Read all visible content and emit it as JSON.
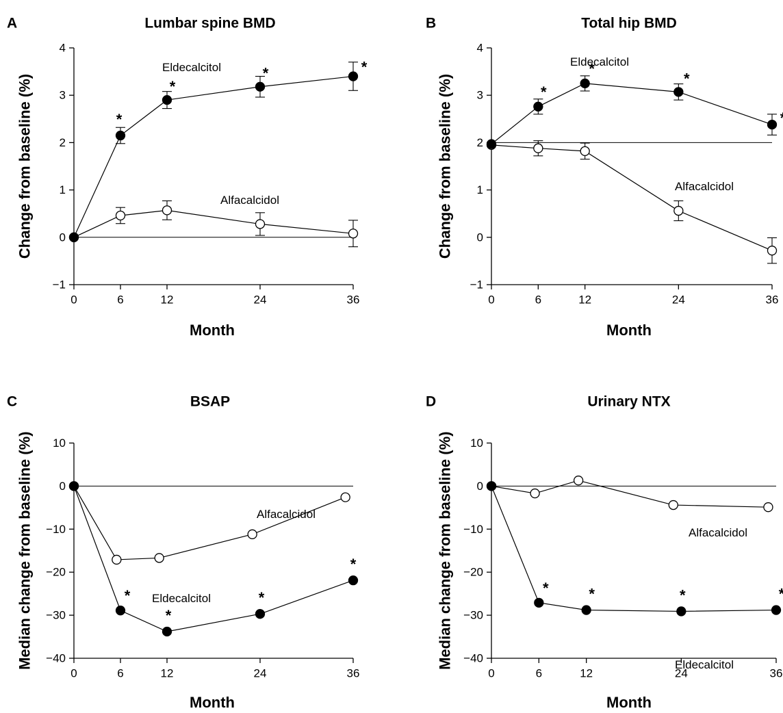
{
  "chart_data": [
    {
      "panel": "A",
      "type": "line",
      "title": "Lumbar spine BMD",
      "xlabel": "Month",
      "ylabel": "Change from baseline (%)",
      "x": [
        0,
        6,
        12,
        24,
        36
      ],
      "xticks": [
        "0",
        "6",
        "12",
        "24",
        "36"
      ],
      "xlim": [
        0,
        36
      ],
      "ylim": [
        -1,
        4
      ],
      "yticks": [
        -1,
        0,
        1,
        2,
        3,
        4
      ],
      "yticklabels": [
        "−1",
        "0",
        "1",
        "2",
        "3",
        "4"
      ],
      "reference_line": 0,
      "series": [
        {
          "name": "Eldecalcitol",
          "marker": "filled",
          "values": [
            0,
            2.15,
            2.9,
            3.18,
            3.4
          ],
          "errors": [
            0,
            0.17,
            0.18,
            0.22,
            0.3
          ],
          "significant": [
            false,
            true,
            true,
            true,
            true
          ]
        },
        {
          "name": "Alfacalcidol",
          "marker": "open",
          "values": [
            0,
            0.46,
            0.57,
            0.28,
            0.08
          ],
          "errors": [
            0,
            0.17,
            0.2,
            0.24,
            0.28
          ],
          "significant": [
            false,
            false,
            false,
            false,
            false
          ]
        }
      ],
      "significance_mark": "*"
    },
    {
      "panel": "B",
      "type": "line",
      "title": "Total hip BMD",
      "xlabel": "Month",
      "ylabel": "Change from baseline (%)",
      "x": [
        0,
        6,
        12,
        24,
        36
      ],
      "xticks": [
        "0",
        "6",
        "12",
        "24",
        "36"
      ],
      "xlim": [
        0,
        36
      ],
      "ylim": [
        -1,
        4
      ],
      "yticks": [
        -1,
        0,
        1,
        2,
        3,
        4
      ],
      "yticklabels": [
        "−1",
        "0",
        "1",
        "2",
        "3",
        "4"
      ],
      "reference_line": 2,
      "series": [
        {
          "name": "Eldecalcitol",
          "marker": "filled",
          "values": [
            1.97,
            2.76,
            3.25,
            3.07,
            2.38
          ],
          "errors": [
            0,
            0.16,
            0.16,
            0.17,
            0.22
          ],
          "significant": [
            false,
            true,
            true,
            true,
            true
          ]
        },
        {
          "name": "Alfacalcidol",
          "marker": "open",
          "values": [
            1.95,
            1.88,
            1.82,
            0.56,
            -0.28
          ],
          "errors": [
            0,
            0.16,
            0.17,
            0.21,
            0.27
          ],
          "significant": [
            false,
            false,
            false,
            false,
            false
          ]
        }
      ],
      "significance_mark": "*"
    },
    {
      "panel": "C",
      "type": "line",
      "title": "BSAP",
      "xlabel": "Month",
      "ylabel": "Median change from baseline (%)",
      "xticks": [
        "0",
        "6",
        "12",
        "24",
        "36"
      ],
      "xtick_values": [
        0,
        6,
        12,
        24,
        36
      ],
      "xlim": [
        0,
        36
      ],
      "ylim": [
        -40,
        15
      ],
      "yticks": [
        -40,
        -30,
        -20,
        -10,
        0,
        10
      ],
      "yticklabels": [
        "−40",
        "−30",
        "−20",
        "−10",
        "0",
        "10"
      ],
      "reference_line": 0,
      "series": [
        {
          "name": "Eldecalcitol",
          "marker": "filled",
          "x": [
            0,
            6,
            12,
            24,
            36
          ],
          "values": [
            0,
            -28.9,
            -33.8,
            -29.7,
            -21.9
          ],
          "significant": [
            false,
            true,
            true,
            true,
            true
          ]
        },
        {
          "name": "Alfacalcidol",
          "marker": "open",
          "x": [
            0,
            5.5,
            11,
            23,
            35
          ],
          "values": [
            0,
            -17.1,
            -16.7,
            -11.2,
            -2.6
          ],
          "significant": [
            false,
            false,
            false,
            false,
            false
          ]
        }
      ],
      "significance_mark": "*"
    },
    {
      "panel": "D",
      "type": "line",
      "title": "Urinary NTX",
      "xlabel": "Month",
      "ylabel": "Median change from baseline (%)",
      "xticks": [
        "0",
        "6",
        "12",
        "24",
        "36"
      ],
      "xtick_values": [
        0,
        6,
        12,
        24,
        36
      ],
      "xlim": [
        0,
        36
      ],
      "ylim": [
        -40,
        15
      ],
      "yticks": [
        -40,
        -30,
        -20,
        -10,
        0,
        10
      ],
      "yticklabels": [
        "−40",
        "−30",
        "−20",
        "−10",
        "0",
        "10"
      ],
      "reference_line": 0,
      "series": [
        {
          "name": "Eldecalcitol",
          "marker": "filled",
          "x": [
            0,
            6,
            12,
            24,
            36
          ],
          "values": [
            0,
            -27.1,
            -28.8,
            -29.1,
            -28.8
          ],
          "significant": [
            false,
            true,
            true,
            true,
            true
          ]
        },
        {
          "name": "Alfacalcidol",
          "marker": "open",
          "x": [
            0,
            5.5,
            11,
            23,
            35
          ],
          "values": [
            0,
            -1.7,
            1.3,
            -4.4,
            -4.9
          ],
          "significant": [
            false,
            false,
            false,
            false,
            false
          ]
        }
      ],
      "significance_mark": "*"
    }
  ]
}
